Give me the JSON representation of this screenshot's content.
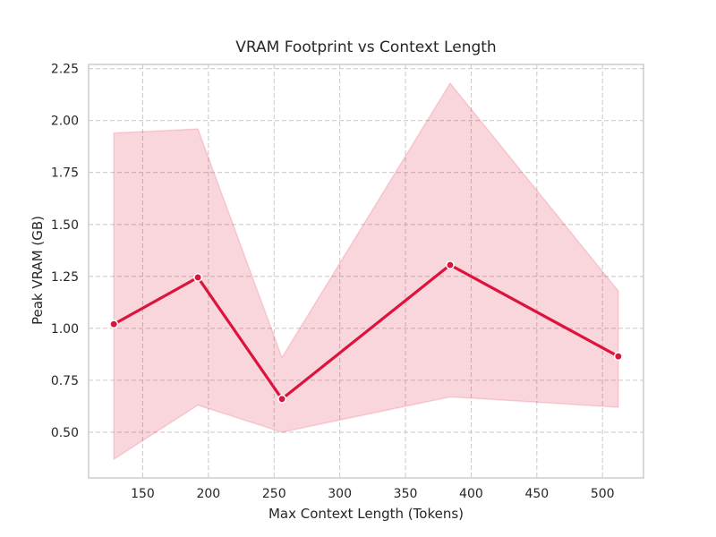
{
  "chart_data": {
    "type": "line",
    "title": "VRAM Footprint vs Context Length",
    "xlabel": "Max Context Length (Tokens)",
    "ylabel": "Peak VRAM (GB)",
    "x": [
      128,
      192,
      256,
      384,
      512
    ],
    "series": [
      {
        "name": "Peak VRAM",
        "values": [
          1.02,
          1.245,
          0.66,
          1.305,
          0.865
        ],
        "band_upper": [
          1.94,
          1.96,
          0.86,
          2.18,
          1.18
        ],
        "band_lower": [
          0.37,
          0.63,
          0.5,
          0.67,
          0.62
        ]
      }
    ],
    "xticks": [
      "150",
      "200",
      "250",
      "300",
      "350",
      "400",
      "450",
      "500"
    ],
    "yticks": [
      "0.50",
      "0.75",
      "1.00",
      "1.25",
      "1.50",
      "1.75",
      "2.00",
      "2.25"
    ],
    "xlim": [
      108.8,
      531.2
    ],
    "ylim": [
      0.28,
      2.27
    ],
    "grid": "dashed",
    "legend": "none",
    "colors": {
      "line": "#dc143c",
      "marker": "#dc143c",
      "marker_edge": "#ffffff",
      "band": "#dc143c",
      "band_opacity": 0.18,
      "grid": "#cccccc",
      "spine": "#c9c9c9",
      "text": "#262626"
    }
  }
}
